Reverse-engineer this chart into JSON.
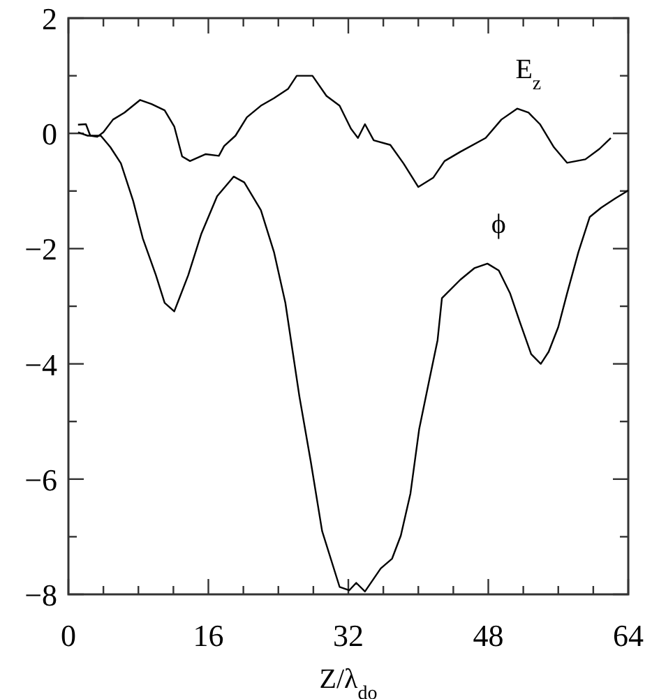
{
  "chart_data": {
    "type": "line",
    "xlabel": "Z/λ$_{do}$",
    "xlim": [
      0,
      64
    ],
    "xticks": [
      0,
      {
        "value": 4,
        "label": null
      },
      {
        "value": 8,
        "label": null
      },
      {
        "value": 12,
        "label": null
      },
      16,
      {
        "value": 20,
        "label": null
      },
      {
        "value": 24,
        "label": null
      },
      {
        "value": 28,
        "label": null
      },
      32,
      {
        "value": 36,
        "label": null
      },
      {
        "value": 40,
        "label": null
      },
      {
        "value": 44,
        "label": null
      },
      48,
      {
        "value": 52,
        "label": null
      },
      {
        "value": 56,
        "label": null
      },
      {
        "value": 60,
        "label": null
      },
      64
    ],
    "ylim": [
      -8,
      2
    ],
    "yticks": [
      {
        "value": -8,
        "label": "−8"
      },
      {
        "value": -7,
        "label": null
      },
      {
        "value": -6,
        "label": "−6"
      },
      {
        "value": -5,
        "label": null
      },
      {
        "value": -4,
        "label": "−4"
      },
      {
        "value": -3,
        "label": null
      },
      {
        "value": -2,
        "label": "−2"
      },
      {
        "value": -1,
        "label": null
      },
      0,
      {
        "value": 1,
        "label": null
      },
      2
    ],
    "grid": false,
    "marker": "none",
    "line_style": "solid",
    "series": [
      {
        "name": "E$_{z}$",
        "color": "#000000",
        "x": [
          1.1,
          2,
          2.5,
          3.3,
          4,
          5.1,
          6.4,
          8.2,
          9.5,
          11,
          12.1,
          13,
          13.9,
          15.7,
          17.2,
          17.8,
          19.1,
          20.4,
          22,
          23.5,
          25.1,
          26.1,
          27.9,
          29.5,
          31,
          32.3,
          33.1,
          33.9,
          34.9,
          36.8,
          38.3,
          40,
          41.7,
          43,
          44.8,
          47.7,
          49.5,
          51.3,
          52.6,
          53.9,
          55.5,
          57,
          59.1,
          60.7,
          62
        ],
        "values": [
          0.15,
          0.16,
          -0.04,
          -0.06,
          0.02,
          0.24,
          0.36,
          0.58,
          0.51,
          0.4,
          0.12,
          -0.4,
          -0.48,
          -0.36,
          -0.39,
          -0.22,
          -0.04,
          0.28,
          0.48,
          0.61,
          0.77,
          1,
          1,
          0.65,
          0.48,
          0.08,
          -0.08,
          0.16,
          -0.12,
          -0.2,
          -0.52,
          -0.93,
          -0.77,
          -0.48,
          -0.32,
          -0.08,
          0.24,
          0.43,
          0.36,
          0.16,
          -0.24,
          -0.51,
          -0.45,
          -0.27,
          -0.08
        ]
      },
      {
        "name": "ϕ",
        "color": "#000000",
        "x": [
          1.1,
          2.2,
          3.7,
          4.8,
          6,
          7.4,
          8.5,
          10,
          11,
          12.1,
          13.7,
          15.2,
          17,
          18.9,
          20.1,
          22,
          23.5,
          24.8,
          25.6,
          26.4,
          27.7,
          29,
          31,
          32.1,
          32.9,
          33.9,
          35.7,
          37,
          38,
          39.1,
          40.1,
          41.2,
          42.2,
          42.7,
          44.8,
          46.4,
          47.9,
          49.2,
          50.5,
          51.6,
          52.9,
          54,
          54.9,
          56,
          57,
          58.3,
          59.6,
          60.9,
          62.5,
          64
        ],
        "values": [
          0.02,
          -0.04,
          -0.04,
          -0.24,
          -0.52,
          -1.17,
          -1.82,
          -2.46,
          -2.94,
          -3.09,
          -2.46,
          -1.74,
          -1.09,
          -0.75,
          -0.85,
          -1.33,
          -2.06,
          -2.94,
          -3.75,
          -4.56,
          -5.69,
          -6.9,
          -7.87,
          -7.93,
          -7.8,
          -7.95,
          -7.55,
          -7.38,
          -6.98,
          -6.25,
          -5.13,
          -4.32,
          -3.59,
          -2.86,
          -2.54,
          -2.34,
          -2.26,
          -2.38,
          -2.78,
          -3.27,
          -3.83,
          -4,
          -3.79,
          -3.36,
          -2.78,
          -2.06,
          -1.45,
          -1.29,
          -1.13,
          -0.99
        ]
      }
    ]
  }
}
